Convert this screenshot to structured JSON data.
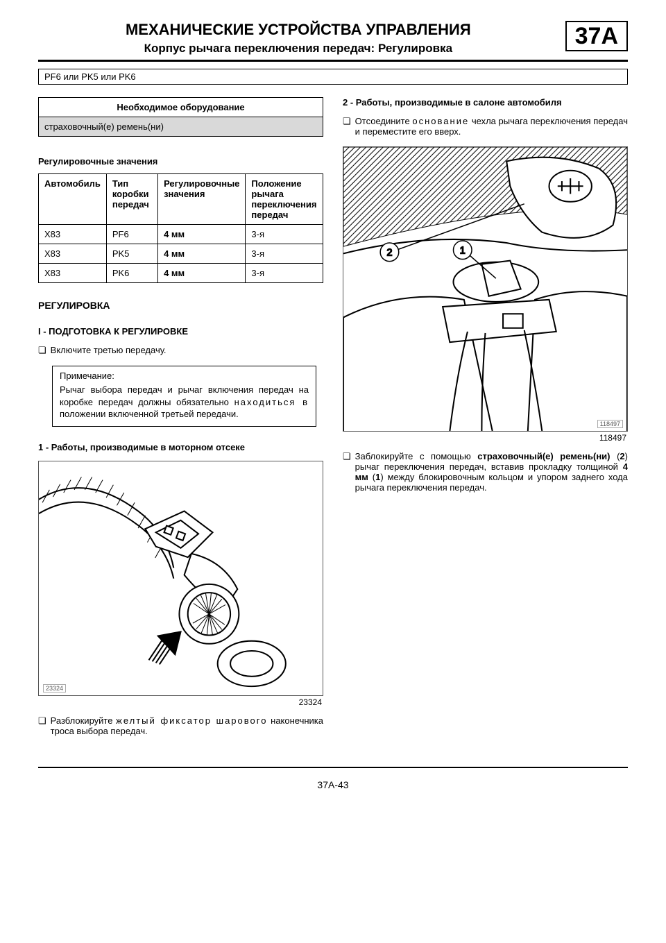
{
  "header": {
    "chapter_title": "МЕХАНИЧЕСКИЕ УСТРОЙСТВА УПРАВЛЕНИЯ",
    "chapter_subtitle": "Корпус рычага переключения передач: Регулировка",
    "chapter_code": "37A"
  },
  "variant_line": "PF6 или PK5 или PK6",
  "equipment": {
    "heading": "Необходимое оборудование",
    "row": "страховочный(е) ремень(ни)"
  },
  "adjust_values": {
    "title": "Регулировочные значения",
    "headers": [
      "Автомобиль",
      "Тип коробки передач",
      "Регулировочные значения",
      "Положение рычага переключения передач"
    ],
    "rows": [
      [
        "X83",
        "PF6",
        "4 мм",
        "3-я"
      ],
      [
        "X83",
        "PK5",
        "4 мм",
        "3-я"
      ],
      [
        "X83",
        "PK6",
        "4 мм",
        "3-я"
      ]
    ]
  },
  "h_adjust": "РЕГУЛИРОВКА",
  "prep": {
    "heading": "I - ПОДГОТОВКА К РЕГУЛИРОВКЕ",
    "bullet": "Включите третью передачу."
  },
  "note": {
    "label": "Примечание:",
    "body_html": "Рычаг выбора передач и рычаг включения передач на коробке передач должны обязательно <span class='spaced'>находиться в</span> положении включенной третьей передачи."
  },
  "engine_bay": {
    "heading": "1 - Работы, производимые в моторном отсеке",
    "figure_ref": "23324",
    "bullet_html": "Разблокируйте <span class='spaced'>желтый фиксатор шарового</span> наконечника троса выбора передач."
  },
  "cabin": {
    "heading": "2 - Работы, производимые в салоне автомобиля",
    "bullet1_html": "Отсоедините <span class='spaced'>основание</span> чехла рычага переключения передач и переместите его вверх.",
    "figure_ref": "118497",
    "figure_inner_ref": "118497",
    "bullet2_html": "Заблокируйте с помощью <b>страховочный(е) ремень(ни)</b> (<b>2</b>) рычаг переключения передач, вставив прокладку толщиной <b>4 мм</b> (<b>1</b>) между блокировочным кольцом и упором заднего хода рычага переключения передач."
  },
  "page_number": "37A-43"
}
